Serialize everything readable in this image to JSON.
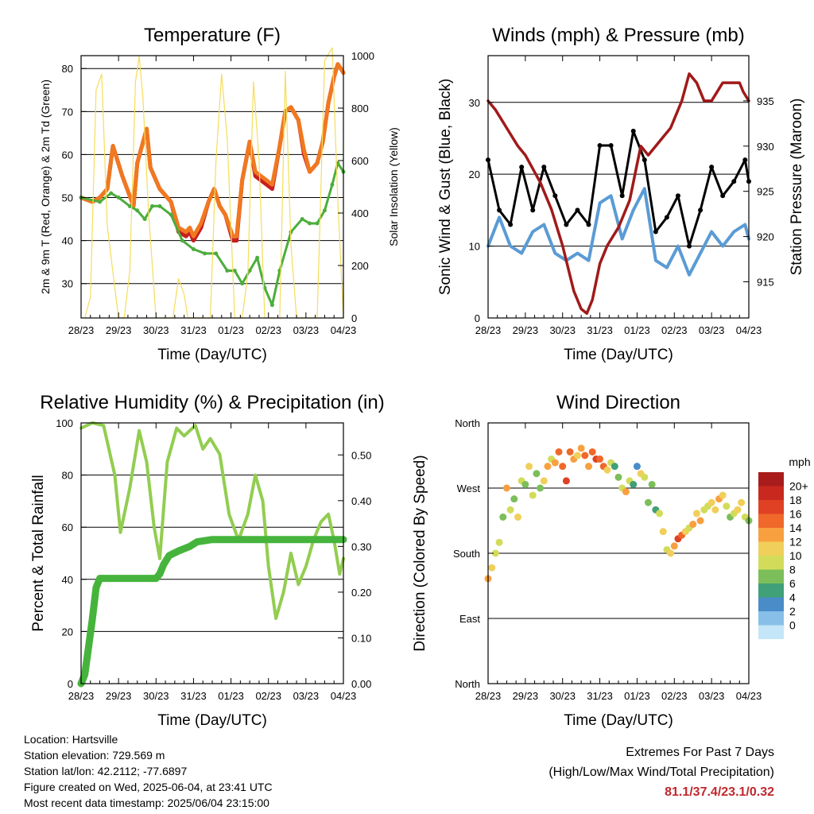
{
  "colors": {
    "temp_red": "#c81e1e",
    "temp_orange": "#f07820",
    "dewpoint_green": "#4cad3c",
    "solar_yellow": "#f5dd5a",
    "wind_blue": "#5a9bd5",
    "gust_black": "#000000",
    "pressure_maroon": "#a01a1a",
    "rh_lightgreen": "#92cd50",
    "precip_green": "#46b43c",
    "extremes": "#c0282d"
  },
  "chart_data": [
    {
      "id": "temperature",
      "type": "line",
      "title": "Temperature (F)",
      "xlabel": "Time (Day/UTC)",
      "ylabel": "2m & 9m T (Red, Orange) & 2m Td (Green)",
      "ylabel_right": "Solar Insolation (Yellow)",
      "x_tick_labels": [
        "28/23",
        "29/23",
        "30/23",
        "31/23",
        "01/23",
        "02/23",
        "03/23",
        "04/23"
      ],
      "xlim": [
        0,
        7
      ],
      "ylim": [
        22,
        83
      ],
      "yticks": [
        30,
        40,
        50,
        60,
        70,
        80
      ],
      "ylim_right": [
        0,
        1000
      ],
      "yticks_right": [
        0,
        200,
        400,
        600,
        800,
        1000
      ],
      "grid": true,
      "series": [
        {
          "name": "2m T",
          "color": "#c81e1e",
          "x": [
            0,
            0.3,
            0.5,
            0.7,
            0.85,
            1.1,
            1.4,
            1.5,
            1.75,
            1.85,
            2.1,
            2.4,
            2.6,
            2.8,
            2.9,
            3.0,
            3.2,
            3.4,
            3.55,
            3.7,
            3.85,
            4.05,
            4.15,
            4.3,
            4.5,
            4.65,
            4.8,
            4.95,
            5.1,
            5.3,
            5.45,
            5.6,
            5.8,
            5.95,
            6.1,
            6.3,
            6.45,
            6.6,
            6.75,
            6.85,
            6.93,
            7.0
          ],
          "y": [
            50,
            49,
            50,
            52,
            62,
            55,
            48,
            58,
            66,
            57,
            52,
            49,
            42,
            41,
            42,
            40,
            43,
            49,
            52,
            48,
            46,
            40,
            40,
            54,
            63,
            55,
            54,
            53,
            52,
            62,
            70,
            71,
            68,
            60,
            56,
            58,
            63,
            72,
            78,
            81,
            80,
            79
          ]
        },
        {
          "name": "9m T",
          "color": "#f07820",
          "x": [
            0,
            0.3,
            0.5,
            0.7,
            0.85,
            1.1,
            1.4,
            1.5,
            1.75,
            1.85,
            2.1,
            2.4,
            2.6,
            2.8,
            2.9,
            3.0,
            3.2,
            3.4,
            3.55,
            3.7,
            3.85,
            4.05,
            4.15,
            4.3,
            4.5,
            4.65,
            4.8,
            4.95,
            5.1,
            5.3,
            5.45,
            5.6,
            5.8,
            5.95,
            6.1,
            6.3,
            6.45,
            6.6,
            6.75,
            6.85,
            6.93,
            7.0
          ],
          "y": [
            50,
            49,
            50,
            52,
            62,
            55,
            48,
            58,
            66,
            57,
            52,
            49,
            43,
            42,
            43,
            41,
            44,
            49,
            52,
            48,
            46,
            41,
            41,
            54,
            63,
            56,
            55,
            54,
            53,
            62,
            70,
            71,
            68,
            61,
            56,
            58,
            63,
            72,
            78,
            81,
            80,
            79
          ]
        },
        {
          "name": "2m Td",
          "color": "#4cad3c",
          "x": [
            0,
            0.5,
            0.8,
            1.0,
            1.3,
            1.5,
            1.7,
            1.9,
            2.1,
            2.4,
            2.7,
            3.0,
            3.3,
            3.6,
            3.9,
            4.1,
            4.3,
            4.5,
            4.7,
            4.9,
            5.1,
            5.3,
            5.6,
            5.9,
            6.1,
            6.3,
            6.5,
            6.7,
            6.85,
            7.0
          ],
          "y": [
            50,
            49,
            51,
            50,
            48,
            47,
            45,
            48,
            48,
            46,
            40,
            38,
            37,
            37,
            33,
            33,
            30,
            33,
            36,
            29,
            25,
            33,
            42,
            45,
            44,
            44,
            47,
            53,
            58,
            56
          ]
        },
        {
          "name": "Solar Insolation",
          "color": "#f5dd5a",
          "axis": "right",
          "x": [
            0.1,
            0.25,
            0.4,
            0.55,
            0.7,
            1.0,
            1.15,
            1.3,
            1.45,
            1.55,
            1.65,
            1.8,
            2.0,
            2.15,
            2.3,
            2.45,
            2.6,
            2.75,
            2.85,
            3.0,
            3.2,
            3.45,
            3.6,
            3.75,
            3.9,
            4.1,
            4.3,
            4.45,
            4.6,
            4.75,
            4.9,
            5.1,
            5.3,
            5.45,
            5.6,
            5.75,
            5.9,
            6.1,
            6.3,
            6.5,
            6.7,
            6.85,
            7.0
          ],
          "y": [
            0,
            80,
            870,
            930,
            350,
            0,
            0,
            180,
            900,
            1000,
            840,
            400,
            0,
            0,
            0,
            0,
            150,
            90,
            0,
            0,
            0,
            0,
            600,
            930,
            680,
            0,
            0,
            170,
            900,
            600,
            0,
            0,
            0,
            940,
            280,
            0,
            0,
            0,
            0,
            980,
            1030,
            450,
            0
          ]
        }
      ]
    },
    {
      "id": "winds",
      "type": "line",
      "title": "Winds (mph) & Pressure (mb)",
      "xlabel": "Time (Day/UTC)",
      "ylabel": "Sonic Wind & Gust (Blue, Black)",
      "ylabel_right": "Station Pressure (Maroon)",
      "x_tick_labels": [
        "28/23",
        "29/23",
        "30/23",
        "31/23",
        "01/23",
        "02/23",
        "03/23",
        "04/23"
      ],
      "xlim": [
        0,
        7
      ],
      "ylim": [
        0,
        36.5
      ],
      "yticks": [
        0,
        10,
        20,
        30
      ],
      "ylim_right": [
        911,
        940
      ],
      "yticks_right": [
        915,
        920,
        925,
        930,
        935
      ],
      "grid": true,
      "series": [
        {
          "name": "Sonic Wind",
          "color": "#5a9bd5",
          "x": [
            0,
            0.3,
            0.6,
            0.9,
            1.2,
            1.5,
            1.8,
            2.1,
            2.4,
            2.7,
            3.0,
            3.3,
            3.6,
            3.9,
            4.2,
            4.5,
            4.8,
            5.1,
            5.4,
            5.7,
            6.0,
            6.3,
            6.6,
            6.9,
            7.0
          ],
          "y": [
            10,
            14,
            10,
            9,
            12,
            13,
            9,
            8,
            9,
            8,
            16,
            17,
            11,
            15,
            18,
            8,
            7,
            10,
            6,
            9,
            12,
            10,
            12,
            13,
            11
          ]
        },
        {
          "name": "Gust",
          "color": "#000000",
          "x": [
            0,
            0.3,
            0.6,
            0.9,
            1.2,
            1.5,
            1.8,
            2.1,
            2.4,
            2.7,
            3.0,
            3.3,
            3.6,
            3.9,
            4.2,
            4.5,
            4.8,
            5.1,
            5.4,
            5.7,
            6.0,
            6.3,
            6.6,
            6.9,
            7.0
          ],
          "y": [
            22,
            15,
            13,
            21,
            15,
            21,
            17,
            13,
            15,
            13,
            24,
            24,
            17,
            26,
            22,
            12,
            14,
            17,
            10,
            15,
            21,
            17,
            19,
            22,
            19
          ]
        },
        {
          "name": "Station Pressure",
          "color": "#a01a1a",
          "axis": "right",
          "x": [
            0,
            0.2,
            0.5,
            0.8,
            1.0,
            1.4,
            1.7,
            2.0,
            2.3,
            2.5,
            2.65,
            2.8,
            3.0,
            3.2,
            3.5,
            3.8,
            4.0,
            4.1,
            4.3,
            4.5,
            4.7,
            4.9,
            5.2,
            5.4,
            5.6,
            5.8,
            6.0,
            6.3,
            6.5,
            6.75,
            6.85,
            7.0
          ],
          "y": [
            935,
            934,
            932,
            930,
            929,
            926,
            923,
            919,
            914,
            912,
            911.5,
            913,
            917,
            919,
            921,
            924,
            928,
            930,
            929,
            930,
            931,
            932,
            935,
            938,
            937,
            935,
            935,
            937,
            937,
            937,
            936,
            935
          ]
        }
      ]
    },
    {
      "id": "humidity",
      "type": "line",
      "title": "Relative Humidity (%) & Precipitation (in)",
      "xlabel": "Time (Day/UTC)",
      "ylabel": "Percent & Total Rainfall",
      "x_tick_labels": [
        "28/23",
        "29/23",
        "30/23",
        "31/23",
        "01/23",
        "02/23",
        "03/23",
        "04/23"
      ],
      "xlim": [
        0,
        7
      ],
      "ylim": [
        0,
        100
      ],
      "yticks": [
        0,
        20,
        40,
        60,
        80,
        100
      ],
      "ylim_right": [
        0,
        0.57
      ],
      "yticks_right": [
        "0.00",
        "0.10",
        "0.20",
        "0.30",
        "0.40",
        "0.50"
      ],
      "grid": true,
      "series": [
        {
          "name": "Relative Humidity",
          "color": "#92cd50",
          "x": [
            0,
            0.3,
            0.6,
            0.9,
            1.05,
            1.3,
            1.55,
            1.75,
            1.95,
            2.1,
            2.3,
            2.55,
            2.75,
            2.9,
            3.05,
            3.25,
            3.45,
            3.7,
            3.95,
            4.2,
            4.45,
            4.65,
            4.85,
            5.0,
            5.2,
            5.4,
            5.6,
            5.8,
            6.0,
            6.2,
            6.4,
            6.6,
            6.75,
            6.9,
            7.0
          ],
          "y": [
            98,
            100,
            99,
            80,
            58,
            75,
            97,
            85,
            60,
            48,
            85,
            98,
            95,
            97,
            99,
            90,
            94,
            88,
            65,
            55,
            65,
            80,
            70,
            45,
            25,
            35,
            50,
            38,
            45,
            55,
            62,
            65,
            55,
            42,
            48
          ]
        },
        {
          "name": "Precipitation",
          "color": "#46b43c",
          "axis": "right",
          "x": [
            0,
            0.1,
            0.2,
            0.3,
            0.4,
            0.5,
            0.6,
            1.0,
            1.5,
            2.0,
            2.1,
            2.2,
            2.35,
            2.6,
            2.9,
            3.1,
            3.5,
            4.0,
            5.0,
            6.0,
            7.0
          ],
          "y": [
            0,
            0.02,
            0.08,
            0.14,
            0.21,
            0.23,
            0.23,
            0.23,
            0.23,
            0.23,
            0.24,
            0.26,
            0.28,
            0.29,
            0.3,
            0.31,
            0.315,
            0.315,
            0.315,
            0.315,
            0.315
          ]
        }
      ]
    },
    {
      "id": "direction",
      "type": "scatter",
      "title": "Wind Direction",
      "xlabel": "Time (Day/UTC)",
      "ylabel": "Direction (Colored By Speed)",
      "x_tick_labels": [
        "28/23",
        "29/23",
        "30/23",
        "31/23",
        "01/23",
        "02/23",
        "03/23",
        "04/23"
      ],
      "xlim": [
        0,
        7
      ],
      "ylim": [
        0,
        360
      ],
      "y_tick_labels": [
        "North",
        "East",
        "South",
        "West",
        "North"
      ],
      "yticks": [
        0,
        90,
        180,
        270,
        360
      ],
      "grid": true,
      "colorbar": {
        "title": "mph",
        "labels": [
          "20+",
          "18",
          "16",
          "14",
          "12",
          "10",
          "8",
          "6",
          "4",
          "2",
          "0"
        ],
        "colors": [
          "#a81c1c",
          "#c8281e",
          "#e04023",
          "#f0682a",
          "#f8a040",
          "#f0cf5a",
          "#d2dc5a",
          "#7cbe5a",
          "#40a078",
          "#4a8cc8",
          "#88bfe8",
          "#c4e6f8"
        ]
      },
      "points": {
        "x": [
          0,
          0.1,
          0.2,
          0.3,
          0.4,
          0.5,
          0.6,
          0.7,
          0.8,
          0.9,
          1.0,
          1.1,
          1.2,
          1.3,
          1.4,
          1.5,
          1.6,
          1.7,
          1.8,
          1.9,
          2.0,
          2.1,
          2.2,
          2.3,
          2.4,
          2.5,
          2.6,
          2.7,
          2.8,
          2.9,
          3.0,
          3.1,
          3.2,
          3.3,
          3.4,
          3.5,
          3.6,
          3.7,
          3.8,
          3.9,
          4.0,
          4.1,
          4.2,
          4.3,
          4.4,
          4.5,
          4.6,
          4.7,
          4.8,
          4.9,
          5.0,
          5.1,
          5.2,
          5.3,
          5.4,
          5.5,
          5.6,
          5.7,
          5.8,
          5.9,
          6.0,
          6.1,
          6.2,
          6.3,
          6.4,
          6.5,
          6.6,
          6.7,
          6.8,
          6.9,
          7.0
        ],
        "y": [
          145,
          160,
          180,
          195,
          230,
          270,
          240,
          255,
          230,
          280,
          275,
          300,
          260,
          290,
          270,
          280,
          300,
          310,
          305,
          320,
          300,
          280,
          320,
          310,
          315,
          325,
          315,
          300,
          320,
          310,
          310,
          300,
          295,
          305,
          300,
          285,
          270,
          265,
          280,
          275,
          300,
          290,
          285,
          250,
          275,
          240,
          235,
          210,
          185,
          180,
          190,
          200,
          205,
          210,
          215,
          220,
          235,
          225,
          240,
          245,
          250,
          240,
          255,
          260,
          245,
          230,
          235,
          240,
          250,
          230,
          225
        ],
        "speed": [
          14,
          12,
          11,
          10,
          9,
          14,
          11,
          8,
          12,
          10,
          9,
          12,
          10,
          9,
          8,
          13,
          14,
          11,
          15,
          16,
          17,
          18,
          16,
          14,
          12,
          15,
          16,
          14,
          17,
          18,
          17,
          16,
          12,
          10,
          7,
          9,
          11,
          14,
          10,
          6,
          5,
          12,
          10,
          8,
          9,
          6,
          11,
          13,
          10,
          12,
          15,
          18,
          16,
          12,
          11,
          14,
          12,
          15,
          11,
          10,
          12,
          13,
          14,
          12,
          10,
          9,
          11,
          13,
          12,
          10,
          9
        ]
      }
    }
  ],
  "footer": {
    "location": "Location: Hartsville",
    "elevation": "Station elevation: 729.569 m",
    "latlon": "Station lat/lon: 42.2112; -77.6897",
    "created": "Figure created on Wed, 2025-06-04, at 23:41 UTC",
    "latest": "Most recent data timestamp: 2025/06/04 23:15:00",
    "extremes_title": "Extremes For Past 7 Days",
    "extremes_subtitle": "(High/Low/Max Wind/Total Precipitation)",
    "extremes_values": "81.1/37.4/23.1/0.32"
  }
}
